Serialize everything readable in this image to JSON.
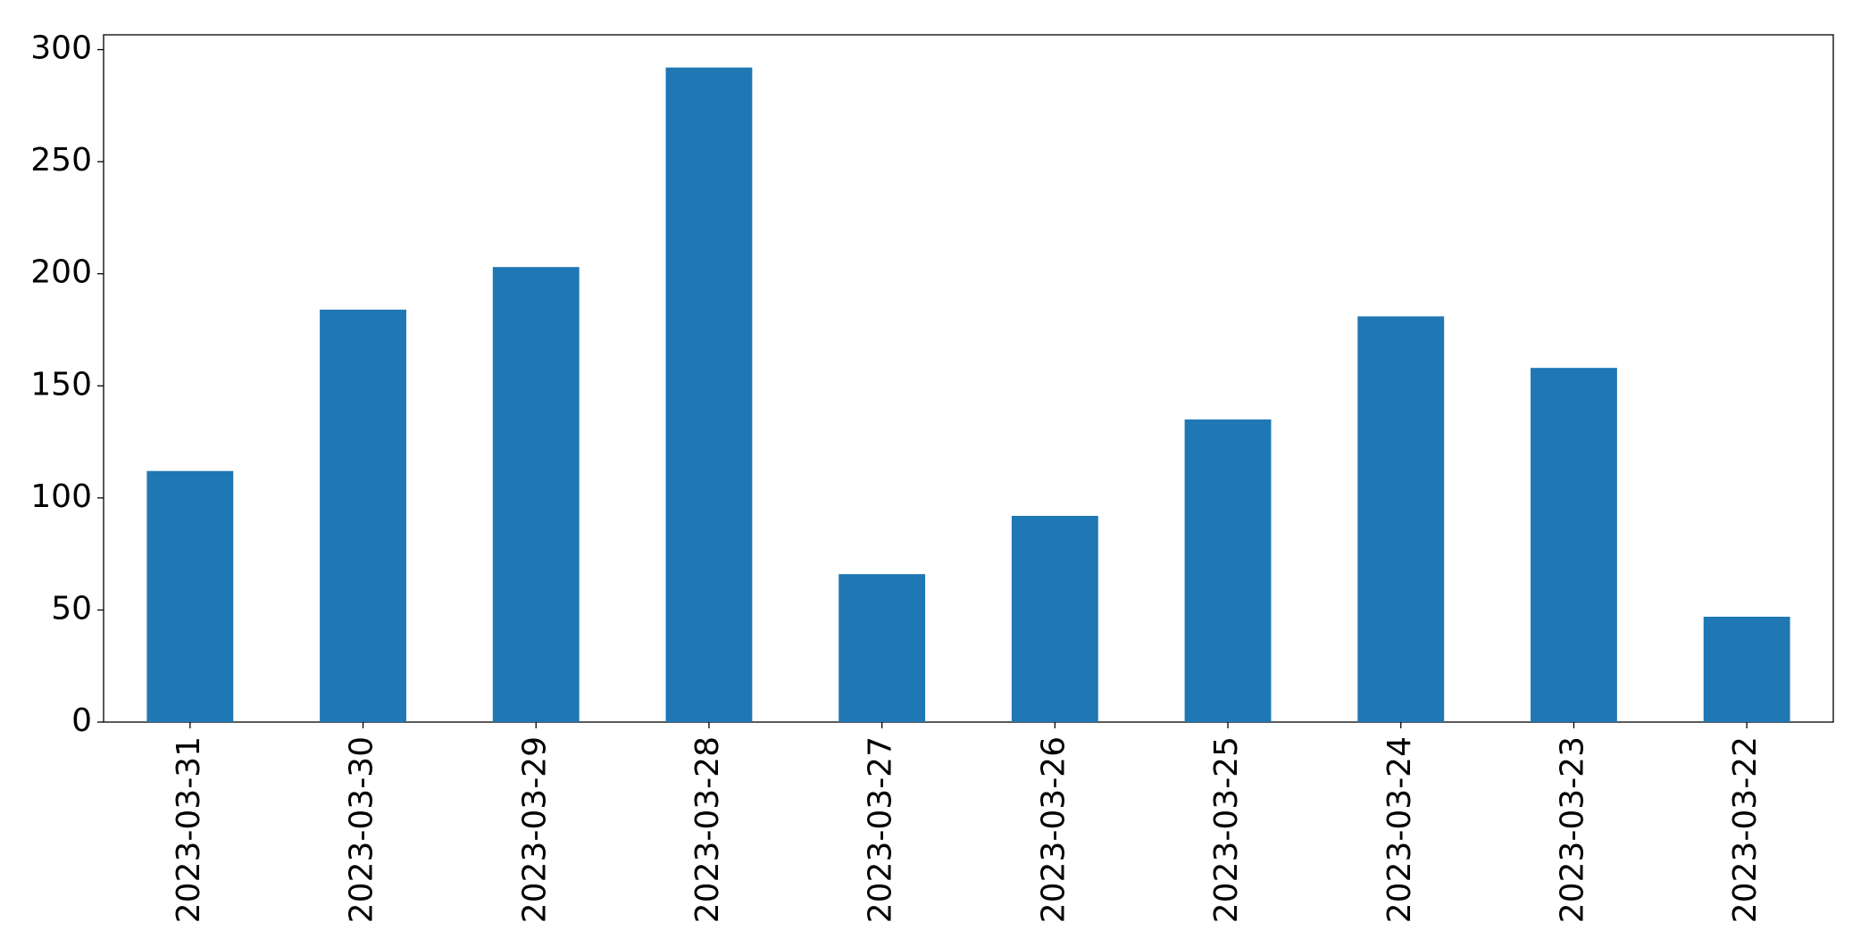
{
  "chart_data": {
    "type": "bar",
    "categories": [
      "2023-03-31",
      "2023-03-30",
      "2023-03-29",
      "2023-03-28",
      "2023-03-27",
      "2023-03-26",
      "2023-03-25",
      "2023-03-24",
      "2023-03-23",
      "2023-03-22"
    ],
    "values": [
      112,
      184,
      203,
      292,
      66,
      92,
      135,
      181,
      158,
      47
    ],
    "color": "#1f77b4",
    "ylim": [
      0,
      306.6
    ],
    "yticks": [
      0,
      50,
      100,
      150,
      200,
      250,
      300
    ],
    "grid": false
  }
}
